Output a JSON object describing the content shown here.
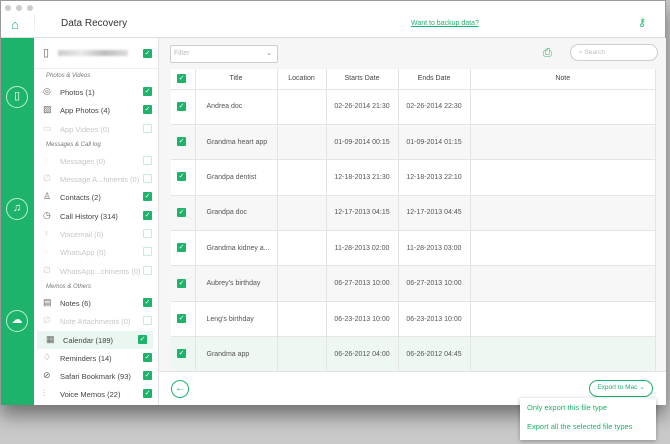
{
  "window": {
    "title": "Data Recovery",
    "backup_link": "Want to backup data?"
  },
  "categories": {
    "device_checked": true,
    "sections": [
      {
        "title": "Photos & Videos",
        "items": [
          {
            "label": "Photos (1)",
            "icon": "camera-icon",
            "glyph": "◎",
            "checked": true,
            "enabled": true
          },
          {
            "label": "App Photos (4)",
            "icon": "image-icon",
            "glyph": "▨",
            "checked": true,
            "enabled": true
          },
          {
            "label": "App Videos (0)",
            "icon": "video-icon",
            "glyph": "▭",
            "checked": false,
            "enabled": false
          }
        ]
      },
      {
        "title": "Messages & Call log",
        "items": [
          {
            "label": "Messages (0)",
            "icon": "message-icon",
            "glyph": "◌",
            "checked": false,
            "enabled": false
          },
          {
            "label": "Message A...hments (0)",
            "icon": "paperclip-icon",
            "glyph": "∅",
            "checked": false,
            "enabled": false
          },
          {
            "label": "Contacts (2)",
            "icon": "person-icon",
            "glyph": "♙",
            "checked": true,
            "enabled": true
          },
          {
            "label": "Call History (314)",
            "icon": "clock-icon",
            "glyph": "◷",
            "checked": true,
            "enabled": true
          },
          {
            "label": "Voicemail (0)",
            "icon": "microphone-icon",
            "glyph": "♀",
            "checked": false,
            "enabled": false
          },
          {
            "label": "WhatsApp (0)",
            "icon": "whatsapp-icon",
            "glyph": "◌",
            "checked": false,
            "enabled": false
          },
          {
            "label": "WhatsApp...chments (0)",
            "icon": "paperclip-icon",
            "glyph": "∅",
            "checked": false,
            "enabled": false
          }
        ]
      },
      {
        "title": "Memos & Others",
        "items": [
          {
            "label": "Notes (6)",
            "icon": "notes-icon",
            "glyph": "▤",
            "checked": true,
            "enabled": true
          },
          {
            "label": "Note Attachments (0)",
            "icon": "paperclip-icon",
            "glyph": "∅",
            "checked": false,
            "enabled": false
          },
          {
            "label": "Calendar (189)",
            "icon": "calendar-icon",
            "glyph": "▦",
            "checked": true,
            "enabled": true,
            "selected": true
          },
          {
            "label": "Reminders (14)",
            "icon": "reminder-icon",
            "glyph": "♢",
            "checked": true,
            "enabled": true
          },
          {
            "label": "Safari Bookmark (93)",
            "icon": "compass-icon",
            "glyph": "⊘",
            "checked": true,
            "enabled": true
          },
          {
            "label": "Voice Memos (22)",
            "icon": "waveform-icon",
            "glyph": "⫶",
            "checked": true,
            "enabled": true
          }
        ]
      }
    ]
  },
  "toolbar": {
    "filter_placeholder": "Filter",
    "search_placeholder": "Search"
  },
  "table": {
    "columns": [
      "Title",
      "Location",
      "Starts Date",
      "Ends Date",
      "Note"
    ],
    "rows": [
      {
        "title": "Andrea doc",
        "location": "",
        "start": "02-26-2014 21:30",
        "end": "02-26-2014 22:30",
        "note": ""
      },
      {
        "title": "Grandma heart app",
        "location": "",
        "start": "01-09-2014 00:15",
        "end": "01-09-2014 01:15",
        "note": ""
      },
      {
        "title": "Grandpa dentist",
        "location": "",
        "start": "12-18-2013 21:30",
        "end": "12-18-2013 22:10",
        "note": ""
      },
      {
        "title": "Grandpa doc",
        "location": "",
        "start": "12-17-2013 04:15",
        "end": "12-17-2013 04:45",
        "note": ""
      },
      {
        "title": "Grandma kidney a...",
        "location": "",
        "start": "11-28-2013 02:00",
        "end": "11-28-2013 03:00",
        "note": ""
      },
      {
        "title": "Aubrey's birthday",
        "location": "",
        "start": "06-27-2013 10:00",
        "end": "06-27-2013 10:00",
        "note": ""
      },
      {
        "title": "Leng's birthday",
        "location": "",
        "start": "06-23-2013 10:00",
        "end": "06-23-2013 10:00",
        "note": ""
      },
      {
        "title": "Grandma app",
        "location": "",
        "start": "06-26-2012 04:00",
        "end": "06-26-2012 04:45",
        "note": ""
      }
    ]
  },
  "footer": {
    "export_label": "Export to Mac ⌄"
  },
  "export_menu": [
    "Only export this file type",
    "Export all the selected file types"
  ],
  "colors": {
    "accent": "#1db36b"
  }
}
